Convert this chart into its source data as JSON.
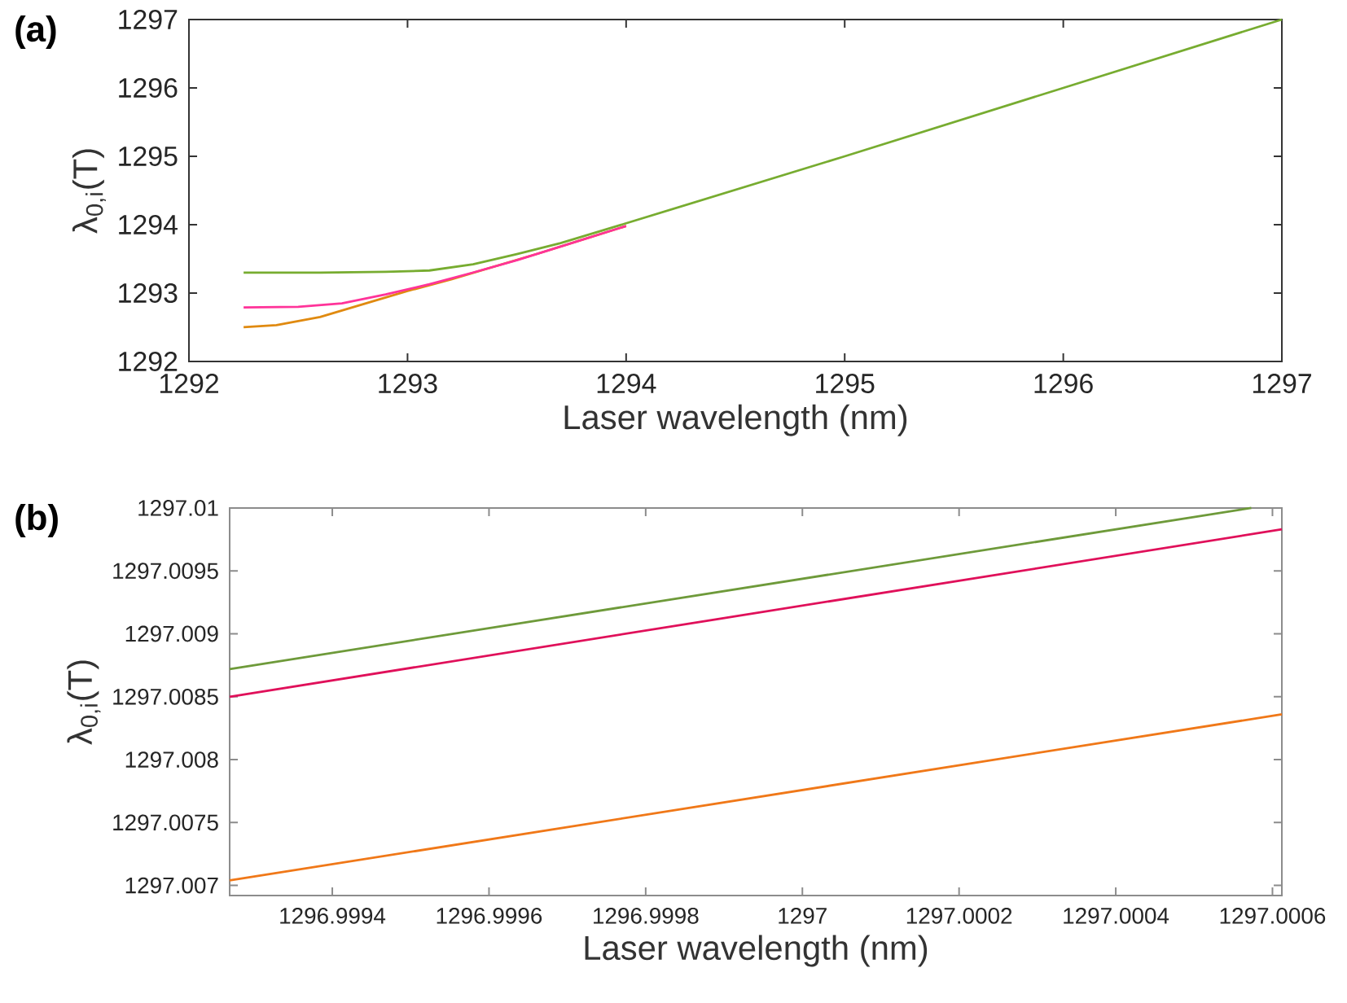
{
  "chart_data": [
    {
      "type": "line",
      "title": "(a)",
      "xlabel": "Laser wavelength (nm)",
      "ylabel": "λ$_{0,i}$(T)",
      "xlim": [
        1292,
        1297
      ],
      "ylim": [
        1292,
        1297
      ],
      "xticks": [
        1292,
        1293,
        1294,
        1295,
        1296,
        1297
      ],
      "yticks": [
        1292,
        1293,
        1294,
        1295,
        1296,
        1297
      ],
      "grid": false,
      "series": [
        {
          "color": "#e08a10",
          "x": [
            1292.25,
            1292.4,
            1292.6,
            1292.8,
            1293.0,
            1293.2,
            1293.4,
            1293.6,
            1293.8,
            1294.0
          ],
          "values": [
            1292.5,
            1292.53,
            1292.65,
            1292.84,
            1293.03,
            1293.2,
            1293.39,
            1293.58,
            1293.78,
            1293.98
          ]
        },
        {
          "color": "#ff3399",
          "x": [
            1292.25,
            1292.5,
            1292.7,
            1292.9,
            1293.1,
            1293.3,
            1293.5,
            1293.7,
            1294.0
          ],
          "values": [
            1292.79,
            1292.8,
            1292.85,
            1292.98,
            1293.13,
            1293.3,
            1293.48,
            1293.68,
            1293.98
          ]
        },
        {
          "color": "#77ac30",
          "x": [
            1292.25,
            1292.6,
            1292.9,
            1293.1,
            1293.3,
            1293.5,
            1293.7,
            1294.0,
            1295.0,
            1296.0,
            1297.0
          ],
          "values": [
            1293.3,
            1293.3,
            1293.31,
            1293.33,
            1293.42,
            1293.57,
            1293.73,
            1294.02,
            1295.0,
            1296.0,
            1297.0
          ]
        }
      ]
    },
    {
      "type": "line",
      "title": "(b)",
      "xlabel": "Laser wavelength (nm)",
      "ylabel": "λ$_{0,i}$(T)",
      "xlim": [
        1296.999269,
        1297.000612
      ],
      "ylim": [
        1297.00692,
        1297.01
      ],
      "xticks": [
        1296.9994,
        1296.9996,
        1296.9998,
        1297,
        1297.0002,
        1297.0004,
        1297.0006
      ],
      "yticks": [
        1297.007,
        1297.0075,
        1297.008,
        1297.0085,
        1297.009,
        1297.0095,
        1297.01
      ],
      "grid": false,
      "series": [
        {
          "color": "#f07818",
          "x": [
            1296.999269,
            1297.000612
          ],
          "values": [
            1297.00704,
            1297.00836
          ]
        },
        {
          "color": "#e0105a",
          "x": [
            1296.999269,
            1297.000612
          ],
          "values": [
            1297.0085,
            1297.00983
          ]
        },
        {
          "color": "#6e9a3a",
          "x": [
            1296.999269,
            1297.000573
          ],
          "values": [
            1297.00872,
            1297.01
          ]
        }
      ]
    }
  ]
}
